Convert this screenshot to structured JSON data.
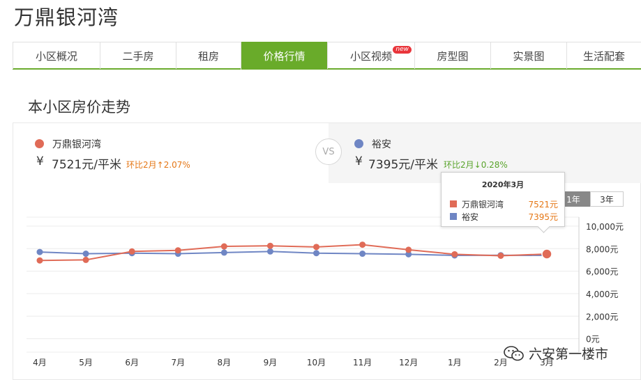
{
  "page": {
    "title": "万鼎银河湾",
    "section_title": "本小区房价走势"
  },
  "tabs": [
    {
      "label": "小区概况",
      "active": false,
      "new": false
    },
    {
      "label": "二手房",
      "active": false,
      "new": false
    },
    {
      "label": "租房",
      "active": false,
      "new": false
    },
    {
      "label": "价格行情",
      "active": true,
      "new": false
    },
    {
      "label": "小区视频",
      "active": false,
      "new": true
    },
    {
      "label": "房型图",
      "active": false,
      "new": false
    },
    {
      "label": "实景图",
      "active": false,
      "new": false
    },
    {
      "label": "生活配套",
      "active": false,
      "new": false
    }
  ],
  "new_badge": "new",
  "compare": {
    "vs_label": "VS",
    "left": {
      "name": "万鼎银河湾",
      "currency": "¥",
      "price": "7521元/平米",
      "change": "环比2月↑2.07%",
      "color": "#e06b57",
      "change_color": "#e57716"
    },
    "right": {
      "name": "裕安",
      "currency": "¥",
      "price": "7395元/平米",
      "change": "环比2月↓0.28%",
      "color": "#6f86c4",
      "change_color": "#5aa42c"
    }
  },
  "range_toggle": {
    "options": [
      "1年",
      "3年"
    ],
    "selected": "1年"
  },
  "tooltip": {
    "title": "2020年3月",
    "rows": [
      {
        "name": "万鼎银河湾",
        "value": "7521元",
        "color": "#e06b57"
      },
      {
        "name": "裕安",
        "value": "7395元",
        "color": "#6f86c4"
      }
    ]
  },
  "chart_data": {
    "type": "line",
    "categories": [
      "4月",
      "5月",
      "6月",
      "7月",
      "8月",
      "9月",
      "10月",
      "11月",
      "12月",
      "1月",
      "2月",
      "3月"
    ],
    "series": [
      {
        "name": "万鼎银河湾",
        "color": "#e06b57",
        "values": [
          6950,
          7000,
          7750,
          7850,
          8200,
          8250,
          8150,
          8350,
          7900,
          7500,
          7369,
          7521
        ]
      },
      {
        "name": "裕安",
        "color": "#6f86c4",
        "values": [
          7700,
          7550,
          7600,
          7550,
          7650,
          7750,
          7600,
          7550,
          7500,
          7400,
          7416,
          7395
        ]
      }
    ],
    "yticks": [
      "0元",
      "2,000元",
      "4,000元",
      "6,000元",
      "8,000元",
      "10,000元"
    ],
    "ylim": [
      -1200,
      10800
    ],
    "highlight_index": 11,
    "grid": true
  },
  "watermark": {
    "text": "六安第一楼市"
  }
}
